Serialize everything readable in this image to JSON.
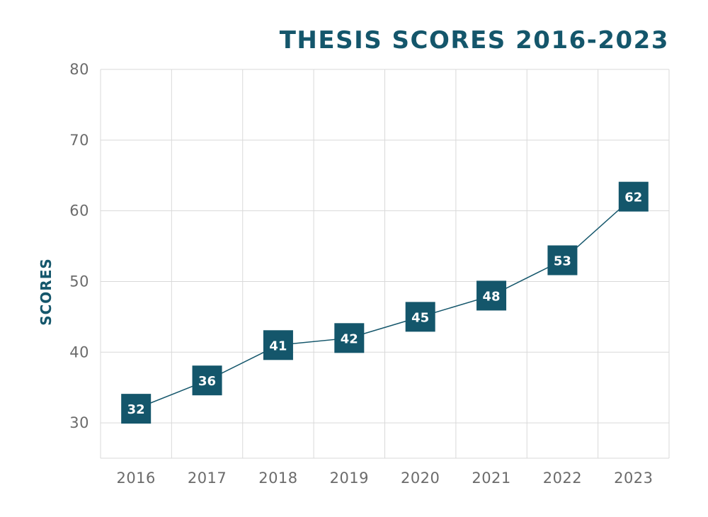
{
  "chart_data": {
    "type": "line",
    "title": "THESIS SCORES 2016-2023",
    "xlabel": "",
    "ylabel": "SCORES",
    "categories": [
      "2016",
      "2017",
      "2018",
      "2019",
      "2020",
      "2021",
      "2022",
      "2023"
    ],
    "values": [
      32,
      36,
      41,
      42,
      45,
      48,
      53,
      62
    ],
    "ylim": [
      25,
      80
    ],
    "yticks": [
      30,
      40,
      50,
      60,
      70,
      80
    ],
    "grid": true,
    "legend": "none",
    "colors": {
      "series": "#14566b",
      "title": "#14566b",
      "grid": "#d9d9d9",
      "ticks": "#6b6b6b"
    }
  }
}
